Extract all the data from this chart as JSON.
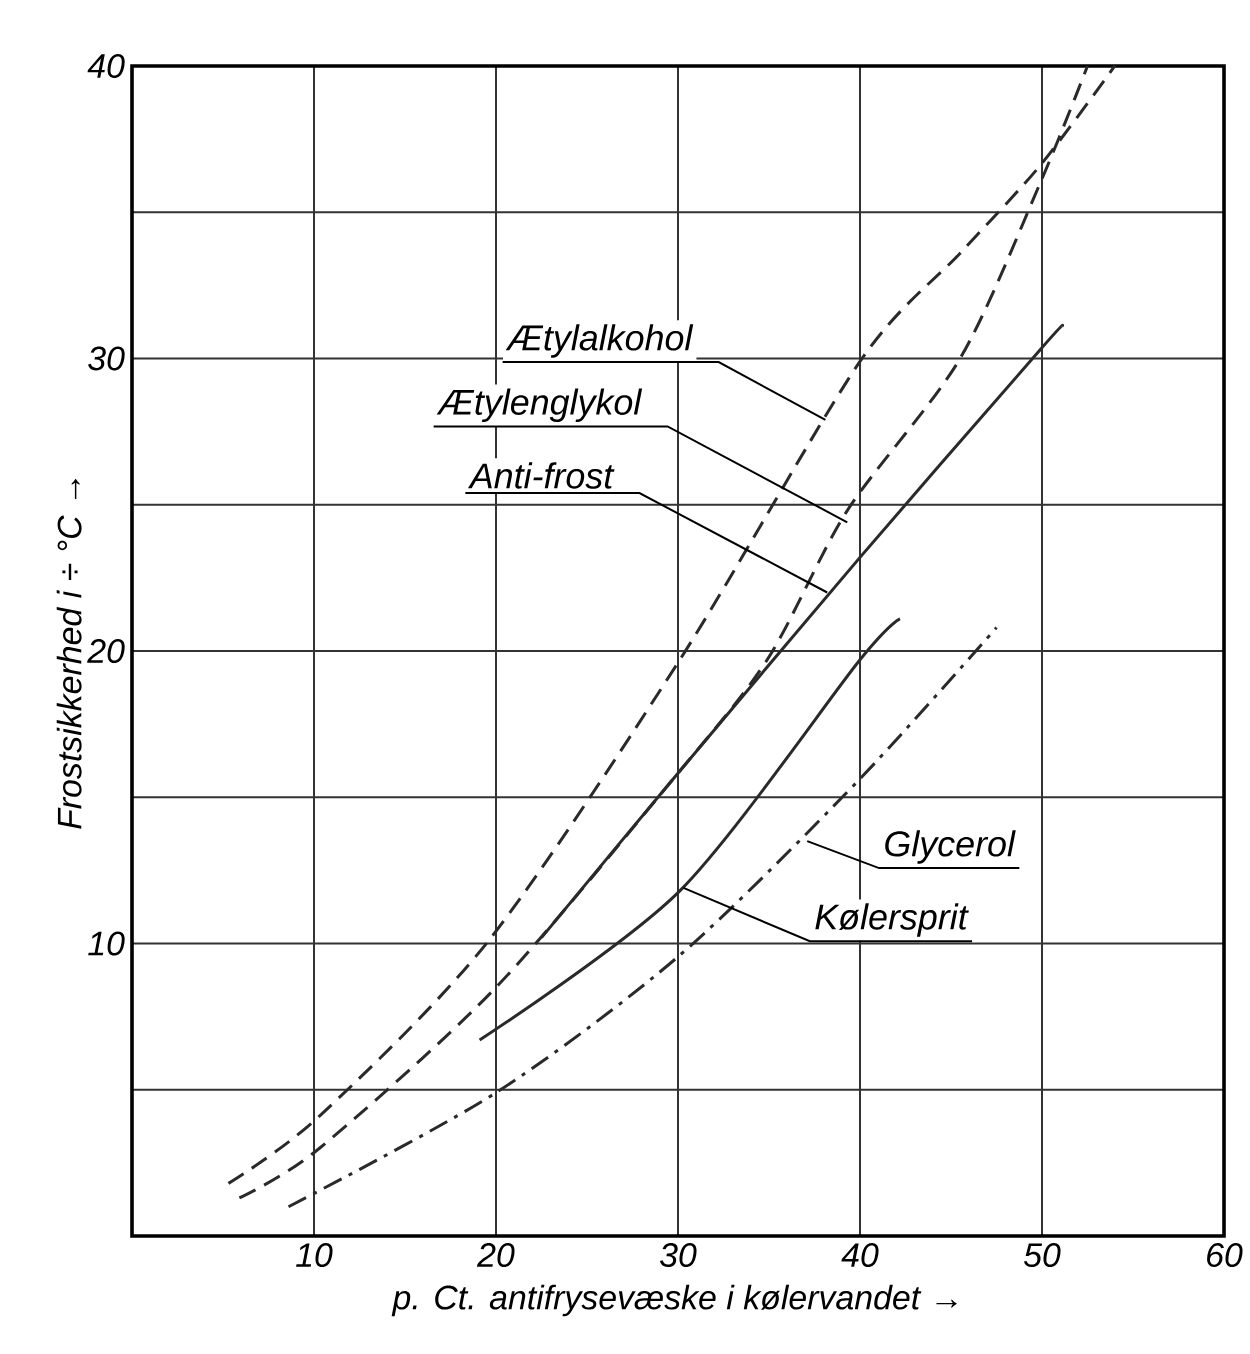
{
  "chart_data": {
    "type": "line",
    "xlabel": "p. Ct. antifrysevæske i kølervandet →",
    "ylabel": "Frostsikkerhed i ÷ °C →",
    "xlim": [
      0,
      60
    ],
    "xticks": [
      10,
      20,
      30,
      40,
      50,
      60
    ],
    "ylim": [
      0,
      40
    ],
    "yticks": [
      {
        "value": 5,
        "label": null
      },
      10,
      {
        "value": 15,
        "label": null
      },
      20,
      {
        "value": 25,
        "label": null
      },
      30,
      {
        "value": 35,
        "label": null
      },
      40
    ],
    "grid": true,
    "marker": "none",
    "series": [
      {
        "color": "#2a2a2a",
        "line_style": "dashed",
        "x": [
          5.3,
          10.3,
          19.6,
          30.1,
          40,
          45.5,
          49.9,
          54
        ],
        "values": [
          1.8,
          4.1,
          10.1,
          19.7,
          29.9,
          33.6,
          36.6,
          40
        ]
      },
      {
        "color": "#2a2a2a",
        "line_style": "dashed",
        "x": [
          5.9,
          10.3,
          20,
          29.7,
          34.9,
          39.3,
          45.5,
          49.9,
          52.5
        ],
        "values": [
          1.3,
          3.0,
          8.5,
          15.6,
          19.7,
          24.8,
          30,
          36,
          40
        ]
      },
      {
        "color": "#2a2a2a",
        "line_style": "solid",
        "x": [
          22.5,
          29.7,
          40,
          49.9,
          51.1
        ],
        "values": [
          10.2,
          15.6,
          23.2,
          30.3,
          31.1
        ]
      },
      {
        "color": "#2a2a2a",
        "line_style": "solid",
        "x": [
          19.1,
          30.1,
          40,
          42.2
        ],
        "values": [
          6.7,
          11.8,
          19.7,
          21.1
        ]
      },
      {
        "color": "#2a2a2a",
        "line_style": "dashdot",
        "x": [
          8.6,
          20,
          30.1,
          39.8,
          47.5
        ],
        "values": [
          1.0,
          4.9,
          9.6,
          15.5,
          20.8
        ]
      }
    ],
    "annotations": [
      {
        "text": "Ætylalkohol",
        "x": 38.1,
        "y": 27.9
      },
      {
        "text": "Ætylenglykol",
        "x": 39.3,
        "y": 24.4
      },
      {
        "text": "Anti-frost",
        "x": 38.2,
        "y": 22
      },
      {
        "text": "Glycerol",
        "x": 37.1,
        "y": 13.5
      },
      {
        "text": "Kølersprit",
        "x": 30.3,
        "y": 11.9
      }
    ]
  }
}
